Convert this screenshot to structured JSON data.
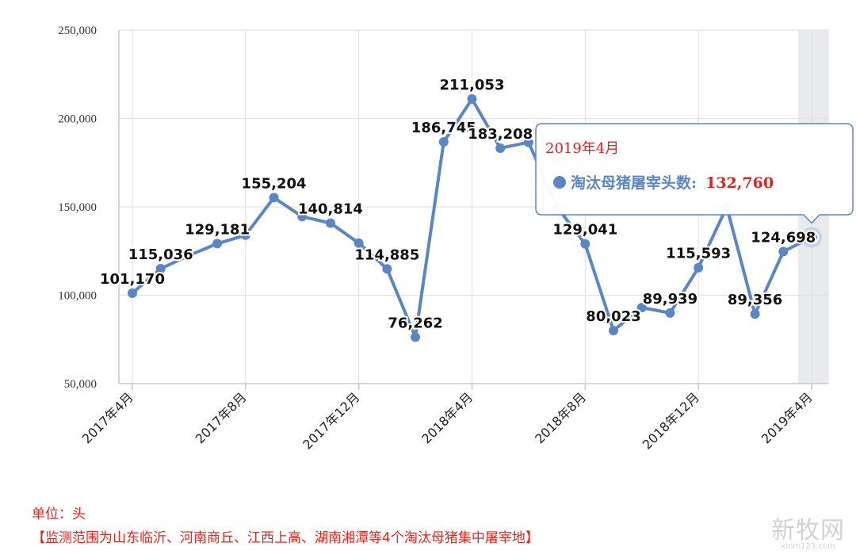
{
  "chart_data": {
    "type": "line",
    "x": [
      "2017年4月",
      "2017年5月",
      "2017年6月",
      "2017年7月",
      "2017年8月",
      "2017年9月",
      "2017年10月",
      "2017年11月",
      "2017年12月",
      "2018年1月",
      "2018年2月",
      "2018年3月",
      "2018年4月",
      "2018年5月",
      "2018年6月",
      "2018年7月",
      "2018年8月",
      "2018年9月",
      "2018年10月",
      "2018年11月",
      "2018年12月",
      "2019年1月",
      "2019年2月",
      "2019年3月",
      "2019年4月"
    ],
    "x_tick_labels": [
      "2017年4月",
      "2017年8月",
      "2017年12月",
      "2018年4月",
      "2018年8月",
      "2018年12月",
      "2019年4月"
    ],
    "y_ticks": [
      "50,000",
      "100,000",
      "150,000",
      "200,000",
      "250,000"
    ],
    "ylim": [
      50000,
      250000
    ],
    "series": [
      {
        "name": "淘汰母猪屠宰头数",
        "color": "#5b86c6",
        "values": [
          101170,
          115036,
          122500,
          129181,
          134000,
          155204,
          144500,
          140814,
          129500,
          114885,
          76262,
          186745,
          211053,
          183208,
          186500,
          150000,
          129041,
          80023,
          93000,
          89939,
          115593,
          150000,
          89356,
          124698,
          132760
        ],
        "labels": [
          "101,170",
          "115,036",
          "",
          "129,181",
          "",
          "155,204",
          "",
          "140,814",
          "",
          "114,885",
          "76,262",
          "186,745",
          "211,053",
          "183,208",
          "",
          "",
          "129,041",
          "80,023",
          "",
          "89,939",
          "115,593",
          "",
          "89,356",
          "124,698",
          ""
        ]
      }
    ],
    "grid": true,
    "tooltip": {
      "title": "2019年4月",
      "series_name": "淘汰母猪屠宰头数:",
      "value": "132,760",
      "index": 24
    },
    "unit_note": "单位：头",
    "scope_note": "【监测范围为山东临沂、河南商丘、江西上高、湖南湘潭等4个淘汰母猪集中屠宰地】"
  },
  "watermark": {
    "main": "新牧网",
    "url": "xinm123.com"
  }
}
